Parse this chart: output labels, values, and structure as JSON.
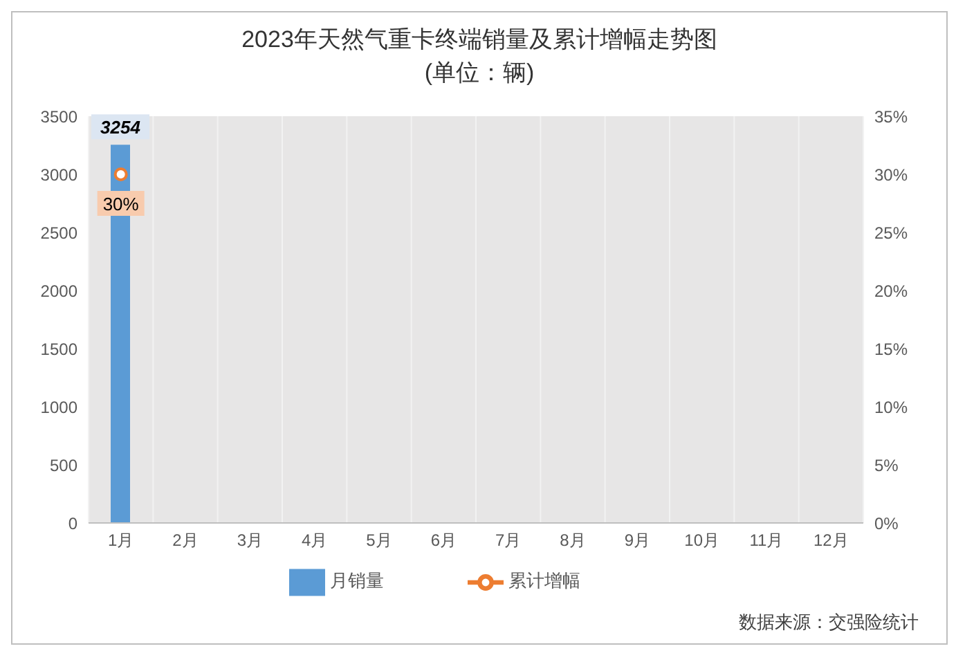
{
  "chart_data": {
    "type": "bar",
    "title": "2023年天然气重卡终端销量及累计增幅走势图",
    "subtitle": "(单位：辆)",
    "categories": [
      "1月",
      "2月",
      "3月",
      "4月",
      "5月",
      "6月",
      "7月",
      "8月",
      "9月",
      "10月",
      "11月",
      "12月"
    ],
    "series": [
      {
        "name": "月销量",
        "color": "#5b9bd5",
        "values": [
          3254,
          null,
          null,
          null,
          null,
          null,
          null,
          null,
          null,
          null,
          null,
          null
        ],
        "value_labels": [
          "3254",
          null,
          null,
          null,
          null,
          null,
          null,
          null,
          null,
          null,
          null,
          null
        ]
      },
      {
        "name": "累计增幅",
        "type": "line",
        "axis": "y2",
        "color": "#ed7d31",
        "values": [
          30,
          null,
          null,
          null,
          null,
          null,
          null,
          null,
          null,
          null,
          null,
          null
        ],
        "value_labels": [
          "30%",
          null,
          null,
          null,
          null,
          null,
          null,
          null,
          null,
          null,
          null,
          null
        ]
      }
    ],
    "ylim": [
      0,
      3500
    ],
    "yticks": [
      0,
      500,
      1000,
      1500,
      2000,
      2500,
      3000,
      3500
    ],
    "y2lim": [
      0,
      35
    ],
    "y2ticks": [
      {
        "value": 0,
        "label": "0%"
      },
      {
        "value": 5,
        "label": "5%"
      },
      {
        "value": 10,
        "label": "10%"
      },
      {
        "value": 15,
        "label": "15%"
      },
      {
        "value": 20,
        "label": "20%"
      },
      {
        "value": 25,
        "label": "25%"
      },
      {
        "value": 30,
        "label": "30%"
      },
      {
        "value": 35,
        "label": "35%"
      }
    ],
    "grid": "x",
    "legend": "bottom",
    "marker": "circle",
    "annotations": [
      "数据来源：交强险统计"
    ]
  }
}
